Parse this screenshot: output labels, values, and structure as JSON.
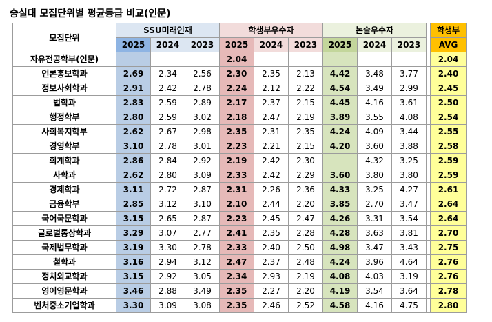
{
  "title": "숭실대 모집단위별 평균등급 비교(인문)",
  "headers": {
    "dept": "모집단위",
    "ssu": "SSU미래인재",
    "student": "학생부우수자",
    "essay": "논술우수자",
    "avg_line1": "학생부",
    "avg_line2": "AVG",
    "years": [
      "2025",
      "2024",
      "2023"
    ]
  },
  "colors": {
    "ssu_header": "#dce6f2",
    "ssu_year_header": "#8eb4e3",
    "ssu_2025": "#b9cde5",
    "student_header": "#f2dcdb",
    "student_2025": "#e6b9b8",
    "essay_header": "#ebf1de",
    "essay_2025": "#d7e4bd",
    "avg_header": "#ffc000",
    "avg_cell": "#ffff99"
  },
  "rows": [
    {
      "dept": "자유전공학부(인문)",
      "ssu": [
        "",
        "",
        ""
      ],
      "student": [
        "2.04",
        "",
        ""
      ],
      "essay": [
        "",
        "",
        ""
      ],
      "avg": "2.04"
    },
    {
      "dept": "언론홍보학과",
      "ssu": [
        "2.69",
        "2.34",
        "2.56"
      ],
      "student": [
        "2.30",
        "2.35",
        "2.13"
      ],
      "essay": [
        "4.42",
        "3.48",
        "3.77"
      ],
      "avg": "2.40"
    },
    {
      "dept": "정보사회학과",
      "ssu": [
        "2.91",
        "2.42",
        "2.78"
      ],
      "student": [
        "2.24",
        "2.12",
        "2.22"
      ],
      "essay": [
        "4.54",
        "3.49",
        "2.99"
      ],
      "avg": "2.45"
    },
    {
      "dept": "법학과",
      "ssu": [
        "2.83",
        "2.59",
        "2.89"
      ],
      "student": [
        "2.17",
        "2.37",
        "2.15"
      ],
      "essay": [
        "4.45",
        "4.16",
        "3.61"
      ],
      "avg": "2.50"
    },
    {
      "dept": "행정학부",
      "ssu": [
        "2.80",
        "2.59",
        "3.02"
      ],
      "student": [
        "2.18",
        "2.47",
        "2.19"
      ],
      "essay": [
        "3.89",
        "3.55",
        "4.08"
      ],
      "avg": "2.54"
    },
    {
      "dept": "사회복지학부",
      "ssu": [
        "2.62",
        "2.67",
        "2.98"
      ],
      "student": [
        "2.35",
        "2.31",
        "2.35"
      ],
      "essay": [
        "4.24",
        "4.09",
        "3.44"
      ],
      "avg": "2.55"
    },
    {
      "dept": "경영학부",
      "ssu": [
        "3.10",
        "2.78",
        "3.01"
      ],
      "student": [
        "2.23",
        "2.21",
        "2.15"
      ],
      "essay": [
        "4.20",
        "3.60",
        "3.88"
      ],
      "avg": "2.58"
    },
    {
      "dept": "회계학과",
      "ssu": [
        "2.86",
        "2.84",
        "2.92"
      ],
      "student": [
        "2.19",
        "2.42",
        "2.30"
      ],
      "essay": [
        "",
        "4.32",
        "3.25"
      ],
      "avg": "2.59"
    },
    {
      "dept": "사학과",
      "ssu": [
        "2.62",
        "2.80",
        "3.09"
      ],
      "student": [
        "2.33",
        "2.42",
        "2.29"
      ],
      "essay": [
        "3.60",
        "3.80",
        "3.80"
      ],
      "avg": "2.59"
    },
    {
      "dept": "경제학과",
      "ssu": [
        "3.11",
        "2.72",
        "2.87"
      ],
      "student": [
        "2.31",
        "2.26",
        "2.36"
      ],
      "essay": [
        "4.33",
        "3.25",
        "4.27"
      ],
      "avg": "2.61"
    },
    {
      "dept": "금융학부",
      "ssu": [
        "2.85",
        "3.12",
        "3.10"
      ],
      "student": [
        "2.10",
        "2.44",
        "2.20"
      ],
      "essay": [
        "3.85",
        "2.70",
        "3.47"
      ],
      "avg": "2.64"
    },
    {
      "dept": "국어국문학과",
      "ssu": [
        "3.15",
        "2.65",
        "2.87"
      ],
      "student": [
        "2.23",
        "2.45",
        "2.47"
      ],
      "essay": [
        "4.26",
        "3.31",
        "3.54"
      ],
      "avg": "2.64"
    },
    {
      "dept": "글로벌통상학과",
      "ssu": [
        "3.29",
        "3.07",
        "2.77"
      ],
      "student": [
        "2.41",
        "2.35",
        "2.28"
      ],
      "essay": [
        "4.28",
        "3.63",
        "3.81"
      ],
      "avg": "2.70"
    },
    {
      "dept": "국제법무학과",
      "ssu": [
        "3.19",
        "3.30",
        "2.78"
      ],
      "student": [
        "2.33",
        "2.40",
        "2.50"
      ],
      "essay": [
        "4.98",
        "3.47",
        "3.43"
      ],
      "avg": "2.75"
    },
    {
      "dept": "철학과",
      "ssu": [
        "3.16",
        "2.94",
        "3.12"
      ],
      "student": [
        "2.47",
        "2.37",
        "2.48"
      ],
      "essay": [
        "4.24",
        "3.96",
        "4.64"
      ],
      "avg": "2.76"
    },
    {
      "dept": "정치외교학과",
      "ssu": [
        "3.15",
        "2.92",
        "3.05"
      ],
      "student": [
        "2.34",
        "2.93",
        "2.19"
      ],
      "essay": [
        "4.08",
        "4.03",
        "3.19"
      ],
      "avg": "2.76"
    },
    {
      "dept": "영어영문학과",
      "ssu": [
        "3.46",
        "2.88",
        "3.49"
      ],
      "student": [
        "2.35",
        "2.27",
        "2.20"
      ],
      "essay": [
        "4.19",
        "3.54",
        "3.64"
      ],
      "avg": "2.78"
    },
    {
      "dept": "벤처중소기업학과",
      "ssu": [
        "3.30",
        "3.09",
        "3.08"
      ],
      "student": [
        "2.35",
        "2.46",
        "2.52"
      ],
      "essay": [
        "4.58",
        "4.16",
        "4.75"
      ],
      "avg": "2.80"
    }
  ]
}
